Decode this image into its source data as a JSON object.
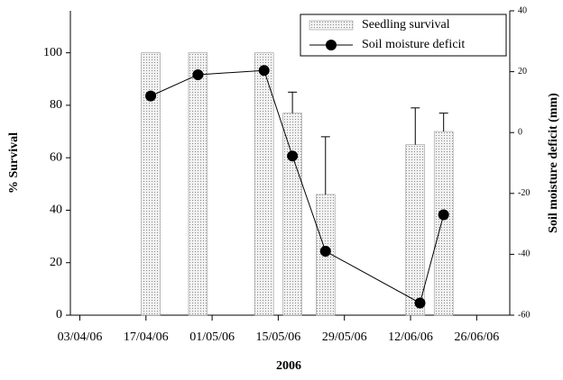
{
  "chart_data": {
    "type": "bar+line",
    "x_label": "2006",
    "y_label": "% Survival",
    "y2_label": "Soil moisture deficit (mm)",
    "xlim": [
      "2006-04-01",
      "2006-07-03"
    ],
    "xticks": [
      {
        "value": "2006-04-03",
        "label": "03/04/06"
      },
      {
        "value": "2006-04-17",
        "label": "17/04/06"
      },
      {
        "value": "2006-05-01",
        "label": "01/05/06"
      },
      {
        "value": "2006-05-15",
        "label": "15/05/06"
      },
      {
        "value": "2006-05-29",
        "label": "29/05/06"
      },
      {
        "value": "2006-06-12",
        "label": "12/06/06"
      },
      {
        "value": "2006-06-26",
        "label": "26/06/06"
      }
    ],
    "ylim": [
      0,
      116
    ],
    "yticks": [
      0,
      20,
      40,
      60,
      80,
      100
    ],
    "y2lim": [
      -60,
      40
    ],
    "y2ticks": [
      -60,
      -40,
      -20,
      0,
      20,
      40
    ],
    "legend": "upper right",
    "series": [
      {
        "name": "Seedling survival",
        "kind": "bar",
        "color": "#d9d9d9",
        "x": [
          "2006-04-18",
          "2006-04-28",
          "2006-05-12",
          "2006-05-18",
          "2006-05-25",
          "2006-06-13",
          "2006-06-19"
        ],
        "values": [
          100,
          100,
          100,
          77,
          46,
          65,
          70
        ],
        "errors": [
          0,
          0,
          0,
          8,
          22,
          14,
          7
        ]
      },
      {
        "name": "Soil moisture deficit",
        "kind": "line",
        "axis": "y2",
        "color": "#000000",
        "x": [
          "2006-04-18",
          "2006-04-28",
          "2006-05-12",
          "2006-05-18",
          "2006-05-25",
          "2006-06-14",
          "2006-06-19"
        ],
        "values": [
          12,
          19,
          20.4,
          -7.7,
          -39,
          -56,
          -27
        ]
      }
    ]
  }
}
